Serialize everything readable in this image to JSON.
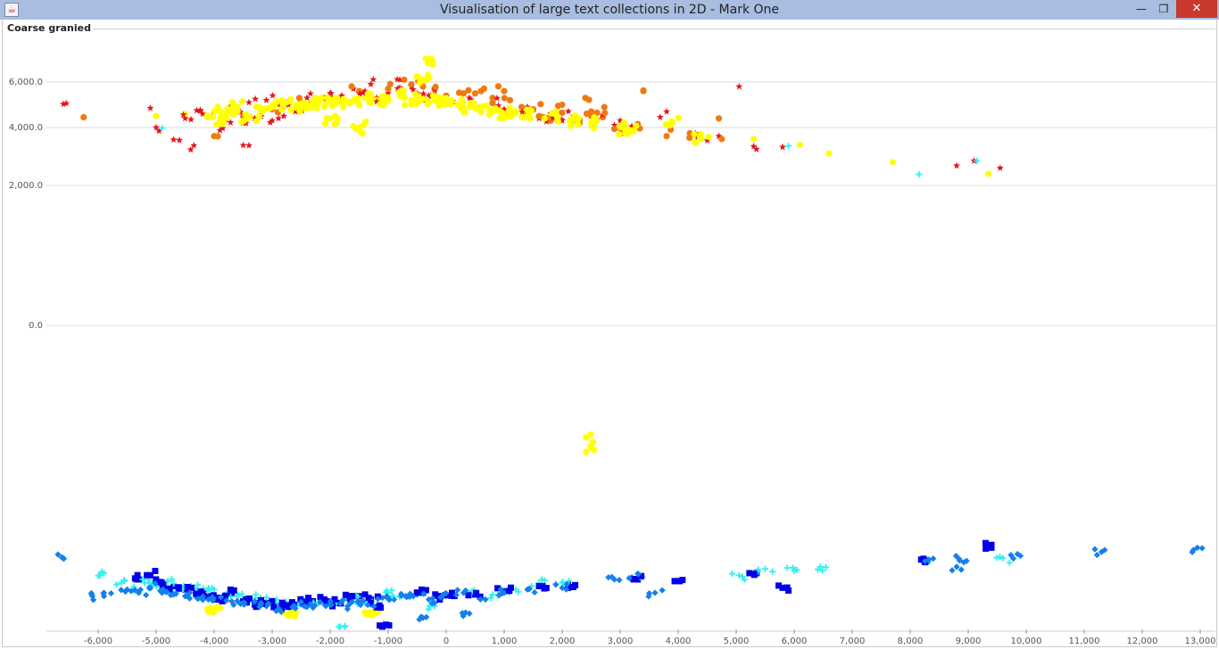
{
  "window": {
    "title": "Visualisation of large text collections in 2D - Mark One",
    "app_icon": "java-icon",
    "minimize_label": "—",
    "maximize_label": "❐",
    "close_label": "✕"
  },
  "panel": {
    "title": "Coarse granied"
  },
  "chart_data": {
    "type": "scatter",
    "title": "Coarse granied",
    "xlabel": "",
    "ylabel": "",
    "xlim": [
      -6000,
      13000
    ],
    "x_ticks": [
      -6000,
      -5000,
      -4000,
      -3000,
      -2000,
      -1000,
      0,
      1000,
      2000,
      3000,
      4000,
      5000,
      6000,
      7000,
      8000,
      9000,
      10000,
      11000,
      12000,
      13000
    ],
    "x_tick_labels": [
      "-6,000",
      "-5,000",
      "-4,000",
      "-3,000",
      "-2,000",
      "-1,000",
      "0",
      "1,000",
      "2,000",
      "3,000",
      "4,000",
      "5,000",
      "6,000",
      "7,000",
      "8,000",
      "9,000",
      "10,000",
      "11,000",
      "12,000",
      "13,000"
    ],
    "y_ticks": [
      6000,
      4000,
      2000,
      0
    ],
    "y_tick_labels": [
      "6,000.0",
      "4,000.0",
      "2,000.0",
      "0.0"
    ],
    "grid": "horizontal",
    "colors": {
      "red": "#e8141c",
      "orange": "#f07a10",
      "yellow": "#ffff00",
      "cyan": "#30f0f0",
      "blue": "#0000e8",
      "azure": "#1480ee"
    },
    "series": [
      {
        "marker": "star",
        "color": "#e8141c",
        "points": [
          [
            -6600,
            5030
          ],
          [
            -6550,
            5060
          ],
          [
            -5100,
            4850
          ],
          [
            -5000,
            4000
          ],
          [
            -4950,
            3880
          ],
          [
            -4700,
            3580
          ],
          [
            -4600,
            3560
          ],
          [
            -4500,
            4400
          ],
          [
            -4400,
            4350
          ],
          [
            -4350,
            3380
          ],
          [
            -4300,
            4750
          ],
          [
            -4200,
            4600
          ],
          [
            -4100,
            4480
          ],
          [
            -3900,
            3900
          ],
          [
            -3800,
            4350
          ],
          [
            -3700,
            4800
          ],
          [
            -3600,
            4900
          ],
          [
            -3500,
            4200
          ],
          [
            -3400,
            5100
          ],
          [
            -3400,
            3380
          ],
          [
            -3300,
            4400
          ],
          [
            -3200,
            4700
          ],
          [
            -3100,
            5200
          ],
          [
            -3000,
            4300
          ],
          [
            -2900,
            5000
          ],
          [
            -2800,
            4500
          ],
          [
            -2700,
            5100
          ],
          [
            -2600,
            4700
          ],
          [
            -2400,
            5300
          ],
          [
            -2200,
            5200
          ],
          [
            -2000,
            5500
          ],
          [
            -1800,
            5400
          ],
          [
            -1600,
            5700
          ],
          [
            -1400,
            5600
          ],
          [
            -1300,
            5900
          ],
          [
            -1200,
            5300
          ],
          [
            -1000,
            5500
          ],
          [
            -800,
            5750
          ],
          [
            -800,
            6100
          ],
          [
            -600,
            5800
          ],
          [
            -500,
            5500
          ],
          [
            -400,
            5200
          ],
          [
            -300,
            5400
          ],
          [
            -200,
            5600
          ],
          [
            0,
            5200
          ],
          [
            200,
            5000
          ],
          [
            400,
            5300
          ],
          [
            600,
            4900
          ],
          [
            800,
            5100
          ],
          [
            1000,
            4800
          ],
          [
            1200,
            4700
          ],
          [
            1400,
            4900
          ],
          [
            1600,
            4400
          ],
          [
            1800,
            4600
          ],
          [
            2000,
            4300
          ],
          [
            2200,
            4500
          ],
          [
            2600,
            4350
          ],
          [
            2900,
            4100
          ],
          [
            3000,
            3900
          ],
          [
            3200,
            4050
          ],
          [
            3800,
            4700
          ],
          [
            4300,
            3800
          ],
          [
            4500,
            3550
          ],
          [
            4700,
            3700
          ],
          [
            5050,
            5800
          ],
          [
            5300,
            3350
          ],
          [
            5350,
            3250
          ],
          [
            5800,
            3320
          ],
          [
            8800,
            2680
          ],
          [
            9100,
            2850
          ],
          [
            9550,
            2600
          ]
        ]
      },
      {
        "marker": "circle",
        "color": "#f07a10",
        "points": [
          [
            -6250,
            4450
          ],
          [
            -4000,
            3700
          ],
          [
            -3500,
            4500
          ],
          [
            -3000,
            4800
          ],
          [
            -2500,
            5100
          ],
          [
            -2000,
            5300
          ],
          [
            -1500,
            5600
          ],
          [
            -1000,
            5700
          ],
          [
            -600,
            5900
          ],
          [
            -400,
            5800
          ],
          [
            -200,
            5700
          ],
          [
            0,
            5400
          ],
          [
            300,
            5500
          ],
          [
            500,
            5500
          ],
          [
            600,
            5600
          ],
          [
            800,
            5300
          ],
          [
            1000,
            5600
          ],
          [
            1100,
            5200
          ],
          [
            1300,
            4900
          ],
          [
            1400,
            4600
          ],
          [
            1500,
            4800
          ],
          [
            1600,
            4500
          ],
          [
            1800,
            4300
          ],
          [
            1900,
            4700
          ],
          [
            2000,
            5000
          ],
          [
            2200,
            4300
          ],
          [
            2300,
            4200
          ],
          [
            2400,
            5300
          ],
          [
            2500,
            4500
          ],
          [
            2500,
            4700
          ],
          [
            2600,
            4650
          ],
          [
            2700,
            4450
          ],
          [
            2900,
            3950
          ],
          [
            3300,
            4150
          ],
          [
            3400,
            5600
          ],
          [
            3800,
            3700
          ],
          [
            4200,
            3800
          ],
          [
            4700,
            4400
          ],
          [
            4750,
            3600
          ]
        ]
      },
      {
        "marker": "circle",
        "color": "#ffff00",
        "points": [
          [
            -300,
            7000
          ],
          [
            -400,
            6100
          ],
          [
            -5000,
            4500
          ],
          [
            -4500,
            4600
          ],
          [
            -4000,
            4700
          ],
          [
            -3800,
            4600
          ],
          [
            -3600,
            4900
          ],
          [
            -3400,
            4500
          ],
          [
            -3200,
            4700
          ],
          [
            -3000,
            4900
          ],
          [
            -2800,
            5000
          ],
          [
            -2600,
            4900
          ],
          [
            -2400,
            5000
          ],
          [
            -2200,
            5100
          ],
          [
            -2000,
            5200
          ],
          [
            -1800,
            5100
          ],
          [
            -1600,
            5200
          ],
          [
            -1400,
            5300
          ],
          [
            -1200,
            5200
          ],
          [
            -1000,
            5300
          ],
          [
            -800,
            5400
          ],
          [
            -600,
            5200
          ],
          [
            -400,
            5300
          ],
          [
            -200,
            5200
          ],
          [
            0,
            5100
          ],
          [
            200,
            5000
          ],
          [
            400,
            4900
          ],
          [
            600,
            4800
          ],
          [
            800,
            4700
          ],
          [
            1000,
            4600
          ],
          [
            1200,
            4700
          ],
          [
            1400,
            4600
          ],
          [
            1800,
            4500
          ],
          [
            2200,
            4300
          ],
          [
            2500,
            4200
          ],
          [
            3000,
            4000
          ],
          [
            3200,
            3900
          ],
          [
            3900,
            4200
          ],
          [
            4400,
            3600
          ],
          [
            5300,
            3600
          ],
          [
            6100,
            3400
          ],
          [
            6600,
            3100
          ],
          [
            7700,
            2800
          ],
          [
            9350,
            2400
          ],
          [
            -3900,
            4300
          ],
          [
            -2000,
            4400
          ],
          [
            -1500,
            4000
          ],
          [
            2500,
            -1000
          ],
          [
            -1300,
            -3600
          ],
          [
            -2700,
            -3650
          ],
          [
            -4000,
            -3500
          ]
        ]
      },
      {
        "marker": "plus",
        "color": "#30f0f0",
        "points": [
          [
            -4900,
            3980
          ],
          [
            5900,
            3360
          ],
          [
            8150,
            2380
          ],
          [
            9150,
            2850
          ],
          [
            -5900,
            -2450
          ],
          [
            -5600,
            -2700
          ],
          [
            -5400,
            -2900
          ],
          [
            -5200,
            -2700
          ],
          [
            -5000,
            -2800
          ],
          [
            -4800,
            -2650
          ],
          [
            -4600,
            -2900
          ],
          [
            -4400,
            -2800
          ],
          [
            -4200,
            -2950
          ],
          [
            -4000,
            -2900
          ],
          [
            -3800,
            -3050
          ],
          [
            -3600,
            -3100
          ],
          [
            -3400,
            -3200
          ],
          [
            -3200,
            -3150
          ],
          [
            -3000,
            -3250
          ],
          [
            -2800,
            -3300
          ],
          [
            -2600,
            -3350
          ],
          [
            -2400,
            -3200
          ],
          [
            -2200,
            -3300
          ],
          [
            -2000,
            -3400
          ],
          [
            -1800,
            -3250
          ],
          [
            -1600,
            -3150
          ],
          [
            -1400,
            -3300
          ],
          [
            -1000,
            -3000
          ],
          [
            -800,
            -3100
          ],
          [
            -200,
            -3400
          ],
          [
            400,
            -3000
          ],
          [
            800,
            -3050
          ],
          [
            1200,
            -2900
          ],
          [
            1600,
            -2700
          ],
          [
            2000,
            -2700
          ],
          [
            3350,
            -2550
          ],
          [
            5050,
            -2500
          ],
          [
            5500,
            -2350
          ],
          [
            6000,
            -2400
          ],
          [
            6450,
            -2300
          ],
          [
            9600,
            -2100
          ],
          [
            -1850,
            -4100
          ]
        ]
      },
      {
        "marker": "square",
        "color": "#0000e8",
        "points": [
          [
            -5300,
            -2600
          ],
          [
            -5100,
            -2500
          ],
          [
            -4900,
            -2700
          ],
          [
            -4700,
            -2800
          ],
          [
            -4500,
            -2900
          ],
          [
            -4300,
            -3000
          ],
          [
            -4100,
            -3100
          ],
          [
            -3900,
            -3200
          ],
          [
            -3700,
            -3000
          ],
          [
            -3500,
            -3250
          ],
          [
            -3300,
            -3350
          ],
          [
            -3100,
            -3300
          ],
          [
            -2900,
            -3400
          ],
          [
            -2700,
            -3350
          ],
          [
            -2500,
            -3300
          ],
          [
            -2300,
            -3250
          ],
          [
            -2100,
            -3200
          ],
          [
            -1900,
            -3300
          ],
          [
            -1700,
            -3150
          ],
          [
            -1500,
            -3100
          ],
          [
            -1300,
            -3200
          ],
          [
            -1200,
            -3450
          ],
          [
            -1100,
            -4100
          ],
          [
            -400,
            -3000
          ],
          [
            -100,
            -3100
          ],
          [
            100,
            -3000
          ],
          [
            500,
            -3050
          ],
          [
            1000,
            -2950
          ],
          [
            1600,
            -2800
          ],
          [
            2100,
            -2750
          ],
          [
            3300,
            -2600
          ],
          [
            3950,
            -2650
          ],
          [
            5350,
            -2450
          ],
          [
            5800,
            -2850
          ],
          [
            8250,
            -2150
          ],
          [
            9400,
            -1850
          ]
        ]
      },
      {
        "marker": "diamond",
        "color": "#1480ee",
        "points": [
          [
            -6600,
            -2100
          ],
          [
            -6100,
            -3100
          ],
          [
            -5900,
            -3000
          ],
          [
            -5500,
            -2900
          ],
          [
            -5300,
            -3000
          ],
          [
            -5100,
            -2800
          ],
          [
            -4900,
            -3000
          ],
          [
            -4700,
            -3050
          ],
          [
            -4500,
            -3100
          ],
          [
            -4300,
            -3150
          ],
          [
            -4100,
            -3200
          ],
          [
            -3900,
            -3150
          ],
          [
            -3700,
            -3250
          ],
          [
            -3500,
            -3300
          ],
          [
            -3300,
            -3350
          ],
          [
            -3100,
            -3400
          ],
          [
            -2900,
            -3500
          ],
          [
            -2700,
            -3450
          ],
          [
            -2500,
            -3350
          ],
          [
            -2300,
            -3400
          ],
          [
            -2100,
            -3350
          ],
          [
            -1900,
            -3300
          ],
          [
            -1700,
            -3400
          ],
          [
            -1500,
            -3250
          ],
          [
            -1300,
            -3350
          ],
          [
            -1100,
            -3150
          ],
          [
            -900,
            -3200
          ],
          [
            -700,
            -3100
          ],
          [
            -500,
            -3050
          ],
          [
            -300,
            -3200
          ],
          [
            0,
            -3100
          ],
          [
            300,
            -3000
          ],
          [
            600,
            -3150
          ],
          [
            1000,
            -3000
          ],
          [
            1400,
            -2900
          ],
          [
            2000,
            -2850
          ],
          [
            2900,
            -2600
          ],
          [
            3200,
            -2550
          ],
          [
            3600,
            -3000
          ],
          [
            8300,
            -2200
          ],
          [
            8800,
            -2300
          ],
          [
            8850,
            -2150
          ],
          [
            9850,
            -2000
          ],
          [
            11300,
            -1950
          ],
          [
            12950,
            -1850
          ],
          [
            -400,
            -3800
          ],
          [
            400,
            -3650
          ]
        ]
      }
    ]
  }
}
